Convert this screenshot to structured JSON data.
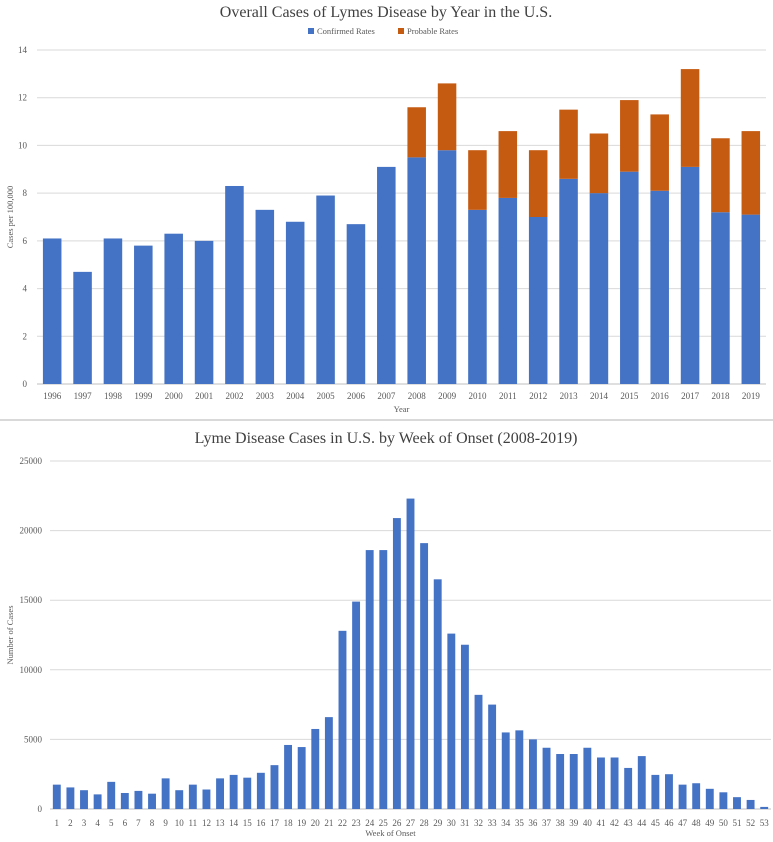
{
  "chart_data": [
    {
      "type": "bar",
      "stacked": true,
      "title": "Overall Cases of Lymes Disease by Year in the U.S.",
      "xlabel": "Year",
      "ylabel": "Cases per 100,000",
      "ylim": [
        0,
        14
      ],
      "yticks": [
        0,
        2,
        4,
        6,
        8,
        10,
        12,
        14
      ],
      "grid": true,
      "legend_position": "top-center",
      "categories": [
        "1996",
        "1997",
        "1998",
        "1999",
        "2000",
        "2001",
        "2002",
        "2003",
        "2004",
        "2005",
        "2006",
        "2007",
        "2008",
        "2009",
        "2010",
        "2011",
        "2012",
        "2013",
        "2014",
        "2015",
        "2016",
        "2017",
        "2018",
        "2019"
      ],
      "series": [
        {
          "name": "Confirmed Rates",
          "color": "#4472c4",
          "values": [
            6.1,
            4.7,
            6.1,
            5.8,
            6.3,
            6.0,
            8.3,
            7.3,
            6.8,
            7.9,
            6.7,
            9.1,
            9.5,
            9.8,
            7.3,
            7.8,
            7.0,
            8.6,
            8.0,
            8.9,
            8.1,
            9.1,
            7.2,
            7.1
          ]
        },
        {
          "name": "Probable Rates",
          "color": "#c55a11",
          "values": [
            0,
            0,
            0,
            0,
            0,
            0,
            0,
            0,
            0,
            0,
            0,
            0,
            2.1,
            2.8,
            2.5,
            2.8,
            2.8,
            2.9,
            2.5,
            3.0,
            3.2,
            4.1,
            3.1,
            3.5
          ]
        }
      ]
    },
    {
      "type": "bar",
      "title": "Lyme Disease Cases in U.S. by Week of Onset (2008-2019)",
      "xlabel": "Week of Onset",
      "ylabel": "Number of Cases",
      "ylim": [
        0,
        25000
      ],
      "yticks": [
        0,
        5000,
        10000,
        15000,
        20000,
        25000
      ],
      "grid": true,
      "color": "#4472c4",
      "categories": [
        "1",
        "2",
        "3",
        "4",
        "5",
        "6",
        "7",
        "8",
        "9",
        "10",
        "11",
        "12",
        "13",
        "14",
        "15",
        "16",
        "17",
        "18",
        "19",
        "20",
        "21",
        "22",
        "23",
        "24",
        "25",
        "26",
        "27",
        "28",
        "29",
        "30",
        "31",
        "32",
        "33",
        "34",
        "35",
        "36",
        "37",
        "38",
        "39",
        "40",
        "41",
        "42",
        "43",
        "44",
        "45",
        "46",
        "47",
        "48",
        "49",
        "50",
        "51",
        "52",
        "53"
      ],
      "values": [
        1750,
        1550,
        1350,
        1050,
        1950,
        1150,
        1300,
        1100,
        2200,
        1350,
        1750,
        1400,
        2200,
        2450,
        2250,
        2600,
        3150,
        4600,
        4450,
        5750,
        6600,
        12800,
        14900,
        18600,
        18600,
        20900,
        22300,
        19100,
        16500,
        12600,
        11800,
        8200,
        7500,
        5500,
        5650,
        5000,
        4400,
        3950,
        3950,
        4400,
        3700,
        3700,
        2950,
        3800,
        2450,
        2500,
        1750,
        1850,
        1450,
        1200,
        850,
        650,
        150
      ]
    }
  ]
}
